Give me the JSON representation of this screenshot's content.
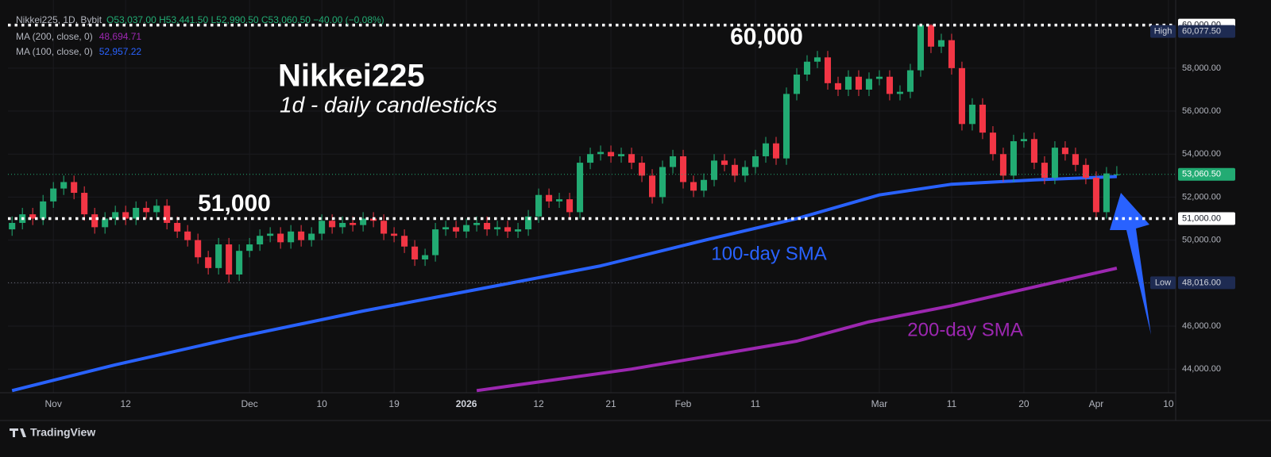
{
  "chart_data": {
    "type": "candlestick",
    "symbol": "Nikkei225, 1D, Bybit",
    "ohlc_label": "O53,037.00 H53,441.50 L52,990.50 C53,060.50 −40.00 (−0.08%)",
    "up_color": "#22ab73",
    "down_color": "#f23645",
    "open": [
      50500,
      50800,
      51200,
      51000,
      51800,
      52400,
      52700,
      52200,
      51200,
      50600,
      51000,
      51300,
      51000,
      51500,
      51300,
      51600,
      50800,
      50400,
      50000,
      49200,
      48700,
      49800,
      48400,
      49500,
      49800,
      50200,
      50300,
      49900,
      50400,
      50000,
      50300,
      50900,
      50600,
      50800,
      50700,
      51000,
      50900,
      50300,
      50200,
      49700,
      49100,
      49300,
      50500,
      50600,
      50400,
      50700,
      50800,
      50500,
      50600,
      50400,
      50500,
      51100,
      52100,
      51800,
      51900,
      51300,
      53600,
      54000,
      54100,
      53900,
      54000,
      53600,
      53000,
      52000,
      53400,
      53900,
      52700,
      52300,
      52800,
      53700,
      53500,
      53000,
      53400,
      53900,
      54500,
      53800,
      56800,
      57700,
      58300,
      58500,
      57300,
      57000,
      57600,
      57000,
      57500,
      57600,
      56800,
      56900,
      57900,
      60000,
      59000,
      59300,
      58000,
      55400,
      56300,
      55000,
      54000,
      53000,
      54600,
      54700,
      53600,
      52900,
      54300,
      54000,
      53500,
      52900,
      51300,
      53037
    ],
    "high": [
      51100,
      51500,
      51500,
      52100,
      52700,
      53000,
      53000,
      52500,
      51500,
      51300,
      51600,
      51600,
      51800,
      51800,
      51900,
      51900,
      51100,
      50700,
      50300,
      49500,
      50100,
      50100,
      49800,
      50100,
      50500,
      50600,
      50600,
      50700,
      50700,
      50600,
      51200,
      51200,
      51100,
      51100,
      51300,
      51300,
      51200,
      50600,
      50500,
      50000,
      49600,
      50800,
      50900,
      50900,
      51000,
      51100,
      51100,
      50900,
      50900,
      50800,
      51400,
      52400,
      52400,
      52200,
      52200,
      53900,
      54300,
      54400,
      54400,
      54300,
      54300,
      53900,
      53300,
      53700,
      54200,
      54200,
      53000,
      53100,
      54000,
      54000,
      53800,
      53700,
      54200,
      54800,
      54800,
      57100,
      58000,
      58600,
      58800,
      58800,
      57600,
      57900,
      57900,
      57800,
      57900,
      57900,
      57200,
      58200,
      60077.5,
      60050,
      59600,
      59600,
      58300,
      56600,
      56600,
      55300,
      54300,
      54900,
      55000,
      55000,
      53900,
      54600,
      54600,
      54300,
      53800,
      53200,
      53400.5,
      53441.5
    ],
    "low": [
      50200,
      50500,
      50700,
      50700,
      51500,
      52100,
      51900,
      50900,
      50300,
      50300,
      50700,
      50700,
      50700,
      51000,
      51000,
      50500,
      50100,
      49700,
      48900,
      48400,
      48400,
      48016,
      48100,
      49200,
      49500,
      49900,
      49600,
      49600,
      49700,
      49700,
      50000,
      50300,
      50300,
      50400,
      50400,
      50600,
      50000,
      49900,
      49400,
      48800,
      48800,
      49000,
      50200,
      50100,
      50100,
      50400,
      50200,
      50200,
      50100,
      50100,
      50200,
      50800,
      51500,
      51500,
      51000,
      51000,
      53300,
      53700,
      53600,
      53600,
      53300,
      52700,
      51700,
      51700,
      53100,
      52400,
      52000,
      52000,
      52500,
      53200,
      52700,
      52700,
      53100,
      53600,
      53500,
      53500,
      56500,
      57400,
      58000,
      57000,
      56700,
      56700,
      56700,
      56700,
      57200,
      56500,
      56500,
      56600,
      57600,
      58700,
      58700,
      57700,
      55100,
      55100,
      54700,
      53700,
      52700,
      52700,
      54300,
      53300,
      52600,
      52600,
      53700,
      53200,
      52600,
      51000,
      51000,
      52990.5
    ],
    "close": [
      50800,
      51200,
      51000,
      51800,
      52400,
      52700,
      52200,
      51200,
      50600,
      51000,
      51300,
      51000,
      51500,
      51300,
      51600,
      50800,
      50400,
      50000,
      49200,
      48700,
      49800,
      48400,
      49500,
      49800,
      50200,
      50300,
      49900,
      50400,
      50000,
      50300,
      50900,
      50600,
      50800,
      50700,
      51000,
      50900,
      50300,
      50200,
      49700,
      49100,
      49300,
      50500,
      50600,
      50400,
      50700,
      50800,
      50500,
      50600,
      50400,
      50500,
      51100,
      52100,
      51800,
      51900,
      51300,
      53600,
      54000,
      54100,
      53900,
      54000,
      53600,
      53000,
      52000,
      53400,
      53900,
      52700,
      52300,
      52800,
      53700,
      53500,
      53000,
      53400,
      53900,
      54500,
      53800,
      56800,
      57700,
      58300,
      58500,
      57300,
      57000,
      57600,
      57000,
      57500,
      57600,
      56800,
      56900,
      57900,
      60000,
      59000,
      59300,
      58000,
      55400,
      56300,
      55000,
      54000,
      53000,
      54600,
      54700,
      53600,
      52900,
      54300,
      54000,
      53500,
      52900,
      51300,
      53100.5,
      53060.5
    ],
    "last_label": "53,060.50",
    "series": [
      {
        "name": "MA (200, close, 0)",
        "color": "#9c27b0",
        "value_label": "48,694.71",
        "x": [
          45,
          60,
          76,
          83,
          91,
          107
        ],
        "values": [
          43000,
          44000,
          45300,
          46200,
          46950,
          48694.71
        ]
      },
      {
        "name": "MA (100, close, 0)",
        "color": "#2962ff",
        "value_label": "52,957.22",
        "x": [
          0,
          10,
          22,
          34,
          45,
          57,
          68,
          76,
          84,
          91,
          99,
          107
        ],
        "values": [
          43000,
          44200,
          45500,
          46700,
          47700,
          48800,
          50100,
          51000,
          52100,
          52600,
          52800,
          52957.22
        ]
      }
    ],
    "xlim": [
      -0.4,
      112.7
    ],
    "ylim": [
      42900,
      60800
    ],
    "xticks": [
      {
        "value": 4,
        "label": "Nov"
      },
      {
        "value": 11,
        "label": "12"
      },
      {
        "value": 23,
        "label": "Dec"
      },
      {
        "value": 30,
        "label": "10"
      },
      {
        "value": 37,
        "label": "19"
      },
      {
        "value": 44,
        "label": "2026"
      },
      {
        "value": 51,
        "label": "12"
      },
      {
        "value": 58,
        "label": "21"
      },
      {
        "value": 65,
        "label": "Feb"
      },
      {
        "value": 72,
        "label": "11"
      },
      {
        "value": 84,
        "label": "Mar"
      },
      {
        "value": 91,
        "label": "11"
      },
      {
        "value": 98,
        "label": "20"
      },
      {
        "value": 105,
        "label": "Apr"
      },
      {
        "value": 112,
        "label": "10"
      }
    ],
    "yticks": [
      {
        "value": 44000,
        "label": "44,000.00"
      },
      {
        "value": 46000,
        "label": "46,000.00"
      },
      {
        "value": 48000,
        "label": "48,000.00"
      },
      {
        "value": 50000,
        "label": "50,000.00"
      },
      {
        "value": 52000,
        "label": "52,000.00"
      },
      {
        "value": 54000,
        "label": "54,000.00"
      },
      {
        "value": 56000,
        "label": "56,000.00"
      },
      {
        "value": 58000,
        "label": "58,000.00"
      },
      {
        "value": 60000,
        "label": "60,000.00"
      }
    ],
    "grid": true,
    "levels": [
      {
        "value": 60000,
        "label": "60,000.00"
      },
      {
        "value": 51000,
        "label": "51,000.00"
      }
    ],
    "high_marker": {
      "label": "High",
      "value": 60077.5,
      "value_label": "60,077.50"
    },
    "low_marker": {
      "label": "Low",
      "value": 48016,
      "value_label": "48,016.00"
    },
    "annotations": [
      "Nikkei225",
      "1d - daily candlesticks",
      "60,000",
      "51,000",
      "100-day SMA",
      "200-day SMA"
    ]
  },
  "branding": "TradingView"
}
